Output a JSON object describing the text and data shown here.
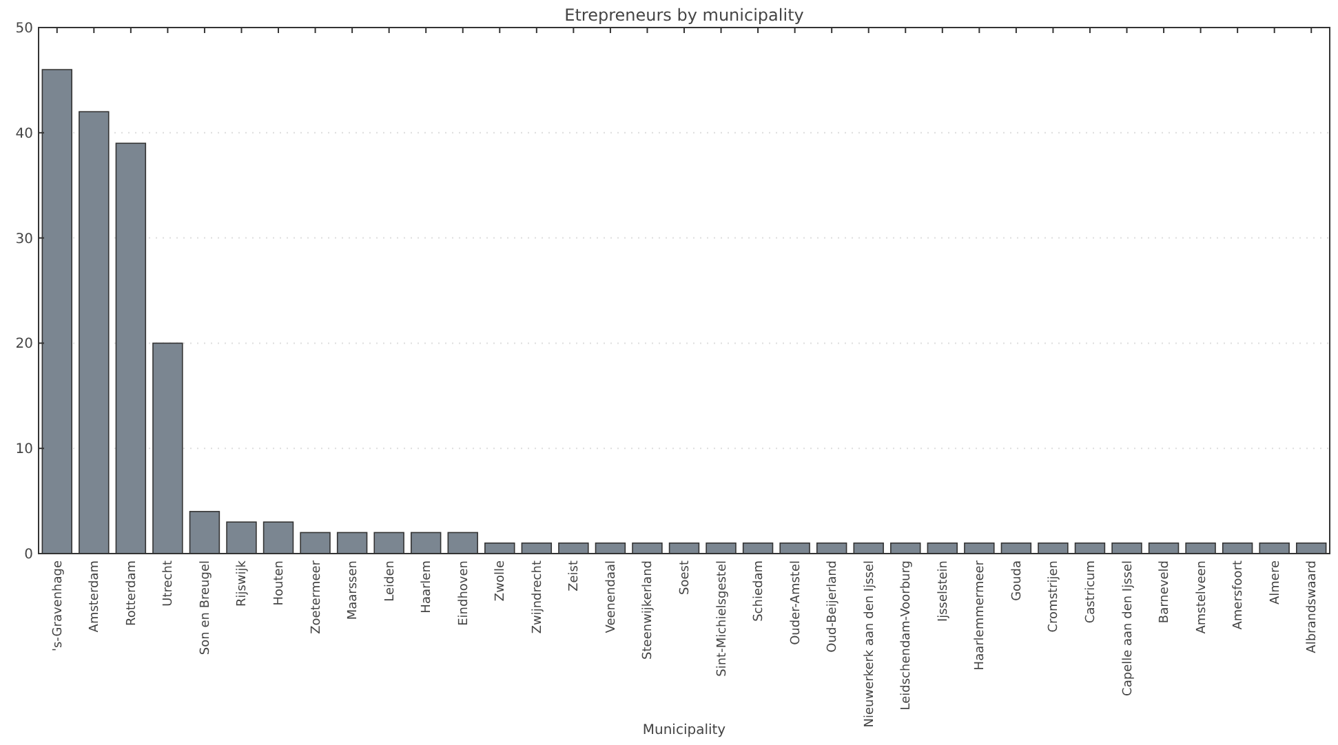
{
  "chart_data": {
    "type": "bar",
    "title": "Etrepreneurs by municipality",
    "xlabel": "Municipality",
    "categories": [
      "'s-Gravenhage",
      "Amsterdam",
      "Rotterdam",
      "Utrecht",
      "Son en Breugel",
      "Rijswijk",
      "Houten",
      "Zoetermeer",
      "Maarssen",
      "Leiden",
      "Haarlem",
      "Eindhoven",
      "Zwolle",
      "Zwijndrecht",
      "Zeist",
      "Veenendaal",
      "Steenwijkerland",
      "Soest",
      "Sint-Michielsgestel",
      "Schiedam",
      "Ouder-Amstel",
      "Oud-Beijerland",
      "Nieuwerkerk aan den Ijssel",
      "Leidschendam-Voorburg",
      "Ijsselstein",
      "Haarlemmermeer",
      "Gouda",
      "Cromstrijen",
      "Castricum",
      "Capelle aan den Ijssel",
      "Barneveld",
      "Amstelveen",
      "Amersfoort",
      "Almere",
      "Albrandswaard"
    ],
    "values": [
      46,
      42,
      39,
      20,
      4,
      3,
      3,
      2,
      2,
      2,
      2,
      2,
      1,
      1,
      1,
      1,
      1,
      1,
      1,
      1,
      1,
      1,
      1,
      1,
      1,
      1,
      1,
      1,
      1,
      1,
      1,
      1,
      1,
      1,
      1
    ],
    "color": "#7b8691",
    "ylim": [
      0,
      50
    ],
    "yticks": [
      0,
      10,
      20,
      30,
      40,
      50
    ],
    "grid": "y"
  }
}
